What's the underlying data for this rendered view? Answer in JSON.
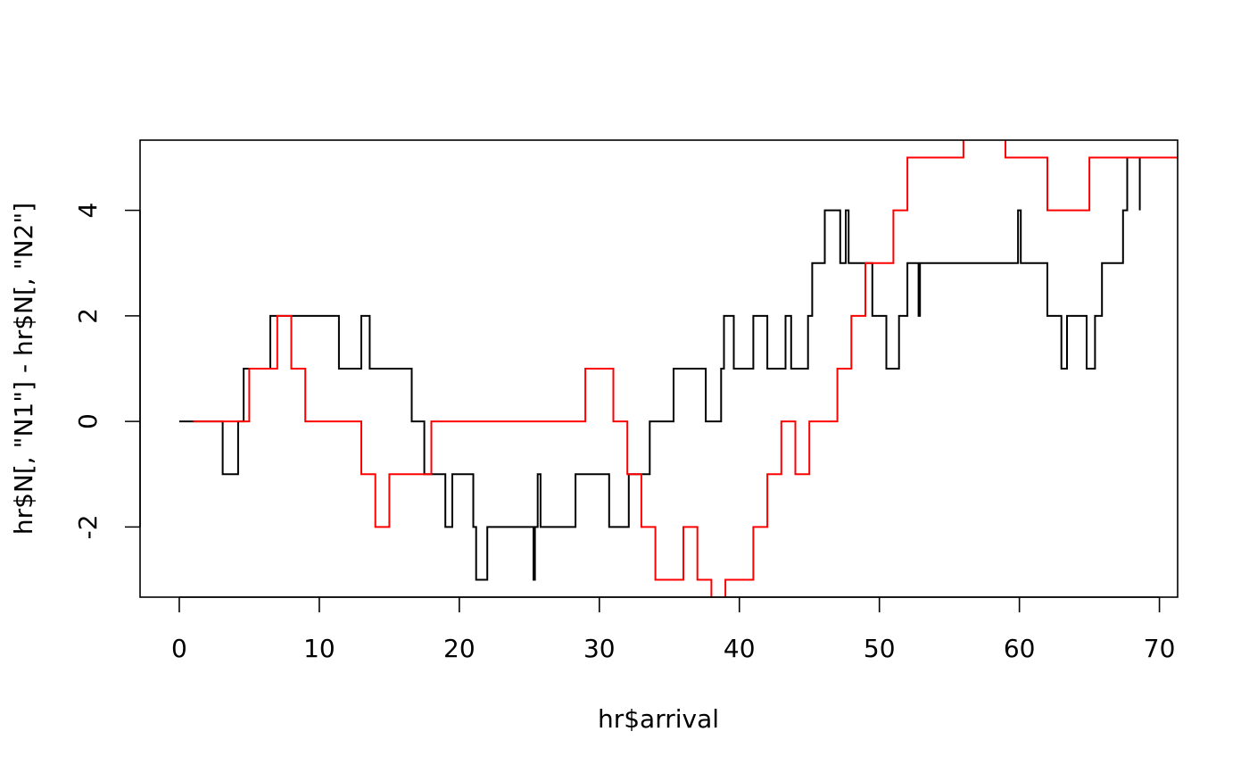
{
  "chart_data": {
    "type": "line",
    "step": true,
    "title": "",
    "xlabel": "hr$arrival",
    "ylabel": "hr$N[, \"N1\"] - hr$N[, \"N2\"]",
    "xlim": [
      -2.8,
      71.3
    ],
    "ylim": [
      -3.33,
      5.33
    ],
    "x_ticks": [
      0,
      10,
      20,
      30,
      40,
      50,
      60,
      70
    ],
    "x_tick_labels": [
      "0",
      "10",
      "20",
      "30",
      "40",
      "50",
      "60",
      "70"
    ],
    "y_ticks": [
      -2,
      0,
      2,
      4
    ],
    "y_tick_labels": [
      "-2",
      "0",
      "2",
      "4"
    ],
    "series": [
      {
        "name": "black",
        "color": "#000000",
        "x": [
          0,
          3.1,
          4.2,
          4.6,
          6.5,
          11.4,
          13,
          13.6,
          16.6,
          17.5,
          19.0,
          19.5,
          21.0,
          21.2,
          22.0,
          25.3,
          25.4,
          25.6,
          25.8,
          26.2,
          28.3,
          30.7,
          32.1,
          32.5,
          33.6,
          35.3,
          37.6,
          38.7,
          38.9,
          39.6,
          41.0,
          42.0,
          43.3,
          43.7,
          44.9,
          45.2,
          46.1,
          47.2,
          47.6,
          47.8,
          48.1,
          49.5,
          50.5,
          51.4,
          52.0,
          52.8,
          52.9,
          53.0,
          59.9,
          60.1,
          62.0,
          63.0,
          63.4,
          64.8,
          65.4,
          65.9,
          67.4,
          67.7,
          68.1,
          68.6,
          68.6
        ],
        "y": [
          0,
          -1,
          0,
          1,
          2,
          1,
          2,
          1,
          0,
          -1,
          -2,
          -1,
          -2,
          -3,
          -2,
          -3,
          -2,
          -1,
          -2,
          -2,
          -1,
          -2,
          -1,
          -1,
          0,
          1,
          0,
          1,
          2,
          1,
          2,
          1,
          2,
          1,
          2,
          3,
          4,
          3,
          4,
          3,
          3,
          2,
          1,
          2,
          3,
          2,
          3,
          3,
          4,
          3,
          2,
          1,
          2,
          1,
          2,
          3,
          4,
          5,
          5,
          4,
          4
        ]
      },
      {
        "name": "red",
        "color": "#ff0000",
        "x": [
          1,
          5,
          7,
          8,
          9,
          13,
          14,
          15,
          18,
          29,
          31,
          32,
          33,
          34,
          36,
          37,
          38,
          39,
          41,
          42,
          43,
          44,
          45,
          47,
          48,
          49,
          51,
          52,
          56,
          59,
          62,
          65,
          71.3
        ],
        "y": [
          0,
          1,
          2,
          1,
          0,
          -1,
          -2,
          -1,
          0,
          1,
          0,
          -1,
          -2,
          -3,
          -2,
          -3,
          -4,
          -3,
          -2,
          -1,
          0,
          -1,
          0,
          1,
          2,
          3,
          4,
          5,
          6,
          5,
          4,
          5,
          5
        ]
      }
    ]
  }
}
